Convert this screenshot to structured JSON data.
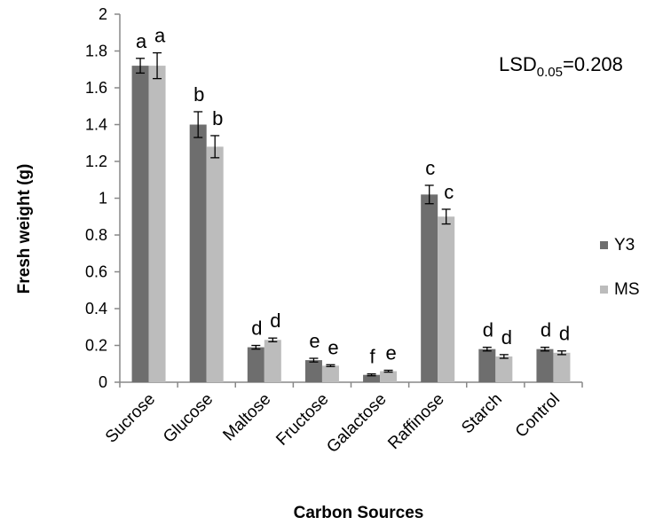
{
  "chart_data": {
    "type": "bar",
    "title": "",
    "xlabel": "Carbon Sources",
    "ylabel": "Fresh weight (g)",
    "ylim": [
      0,
      2
    ],
    "yticks": [
      0,
      0.2,
      0.4,
      0.6,
      0.8,
      1,
      1.2,
      1.4,
      1.6,
      1.8,
      2
    ],
    "ytick_labels": [
      "0",
      "0.2",
      "0.4",
      "0.6",
      "0.8",
      "1",
      "1.2",
      "1.4",
      "1.6",
      "1.8",
      "2"
    ],
    "categories": [
      "Sucrose",
      "Glucose",
      "Maltose",
      "Fructose",
      "Galactose",
      "Raffinose",
      "Starch",
      "Control"
    ],
    "series": [
      {
        "name": "Y3",
        "color": "#6e6e6e",
        "values": [
          1.72,
          1.4,
          0.19,
          0.12,
          0.04,
          1.02,
          0.18,
          0.18
        ],
        "errors": [
          0.04,
          0.07,
          0.01,
          0.01,
          0.005,
          0.05,
          0.01,
          0.01
        ],
        "sig_labels": [
          "a",
          "b",
          "d",
          "e",
          "f",
          "c",
          "d",
          "d"
        ]
      },
      {
        "name": "MS",
        "color": "#bcbcbc",
        "values": [
          1.72,
          1.28,
          0.23,
          0.09,
          0.06,
          0.9,
          0.14,
          0.16
        ],
        "errors": [
          0.07,
          0.06,
          0.01,
          0.005,
          0.005,
          0.04,
          0.01,
          0.01
        ],
        "sig_labels": [
          "a",
          "b",
          "d",
          "e",
          "e",
          "c",
          "d",
          "d"
        ]
      }
    ],
    "annotation": {
      "base": "LSD",
      "sub": "0.05",
      "rest": "=0.208"
    },
    "grid": false,
    "legend_position": "right"
  }
}
